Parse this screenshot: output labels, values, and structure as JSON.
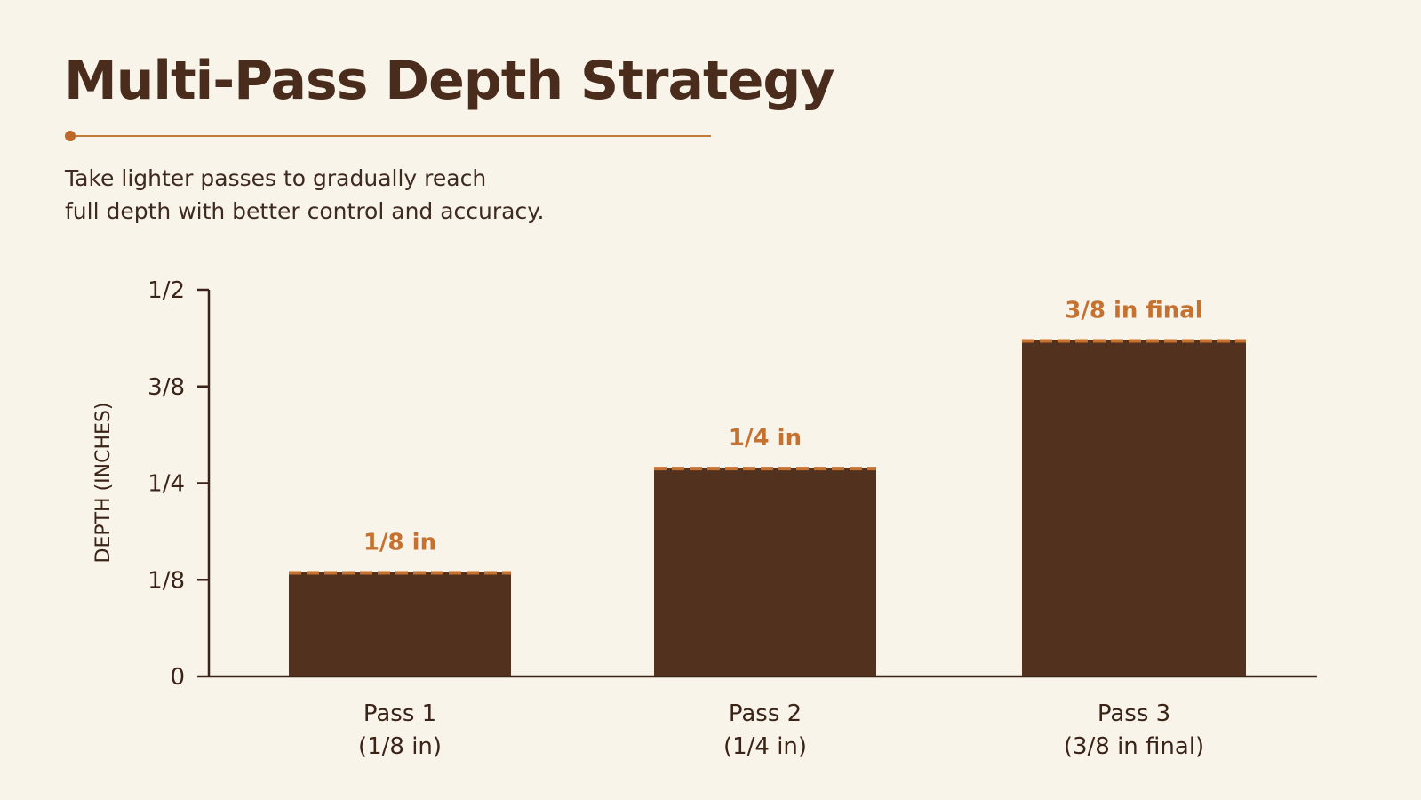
{
  "header": {
    "title": "Multi-Pass Depth Strategy",
    "subtitle_lines": [
      "Take lighter passes to gradually reach",
      "full depth with better control and accuracy."
    ]
  },
  "colors": {
    "background": "#f9f4ea",
    "bar": "#52321f",
    "accent": "#c5712f",
    "text": "#3b2417"
  },
  "chart_data": {
    "type": "bar",
    "title": "",
    "xlabel": "",
    "ylabel": "DEPTH (INCHES)",
    "ylim": [
      0,
      0.5
    ],
    "yticks": [
      {
        "value": 0,
        "label": "0"
      },
      {
        "value": 0.125,
        "label": "1/8"
      },
      {
        "value": 0.25,
        "label": "1/4"
      },
      {
        "value": 0.375,
        "label": "3/8"
      },
      {
        "value": 0.5,
        "label": "1/2"
      }
    ],
    "categories": [
      [
        "Pass 1",
        "(1/8 in)"
      ],
      [
        "Pass 2",
        "(1/4 in)"
      ],
      [
        "Pass 3",
        "(3/8 in final)"
      ]
    ],
    "values": [
      0.135,
      0.27,
      0.435
    ],
    "data_labels": [
      "1/8 in",
      "1/4 in",
      "3/8 in final"
    ],
    "grid": false,
    "legend": "none"
  }
}
